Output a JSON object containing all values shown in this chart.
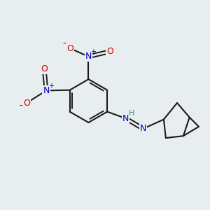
{
  "bg_color": "#e8eef0",
  "bond_color": "#1a1a1a",
  "bond_width": 1.5,
  "atom_colors": {
    "C": "#1a1a1a",
    "N": "#0000cc",
    "O": "#cc0000",
    "H": "#4a8a8a"
  },
  "figsize": [
    3.0,
    3.0
  ],
  "dpi": 100
}
